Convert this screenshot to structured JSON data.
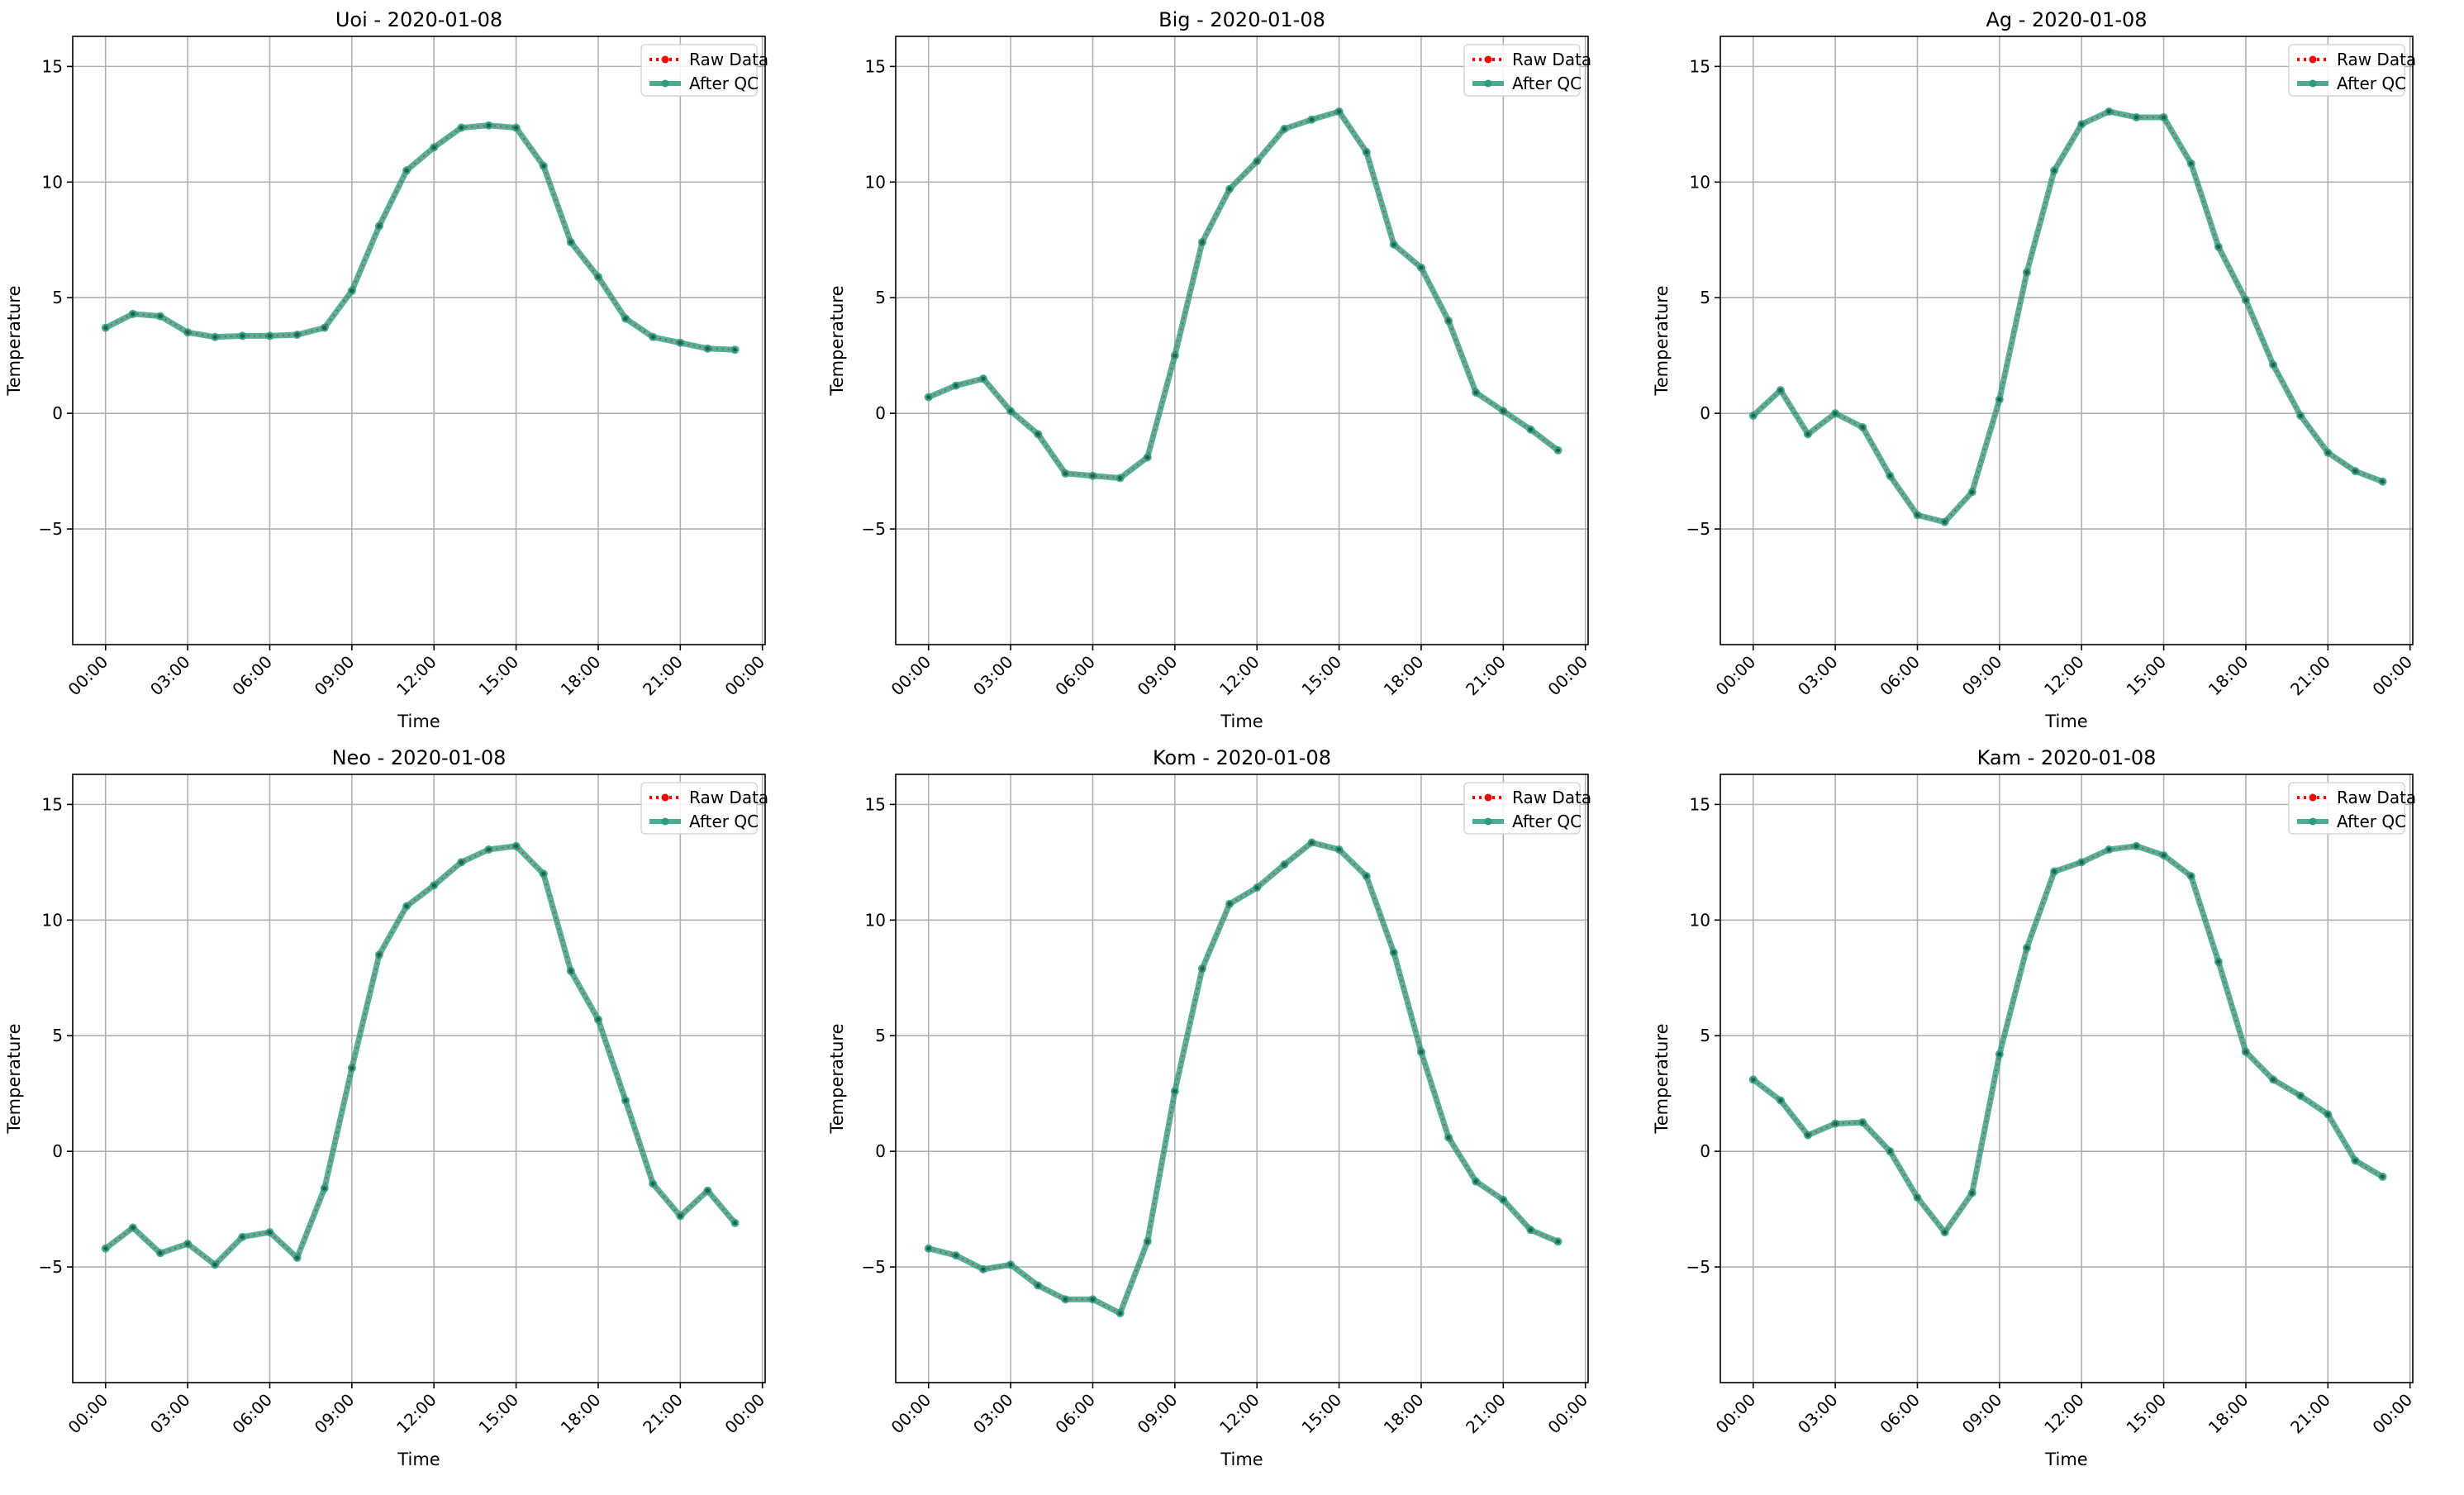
{
  "x_ticks": [
    "00:00",
    "03:00",
    "06:00",
    "09:00",
    "12:00",
    "15:00",
    "18:00",
    "21:00",
    "00:00"
  ],
  "y_ticks": [
    -5,
    0,
    5,
    10,
    15
  ],
  "legend_labels": {
    "raw": "Raw Data",
    "qc": "After QC"
  },
  "colors": {
    "raw": "#ff0000",
    "qc": "#2a9d80",
    "grid": "#b0b0b0"
  },
  "chart_data": [
    {
      "type": "line",
      "title": "Uoi - 2020-01-08",
      "xlabel": "Time",
      "ylabel": "Temperature",
      "xlim_hours": [
        -1.2,
        24.1
      ],
      "ylim": [
        -10,
        16.3
      ],
      "grid": true,
      "legend": "top-right",
      "x_hours": [
        0,
        1,
        2,
        3,
        4,
        5,
        6,
        7,
        8,
        9,
        10,
        11,
        12,
        13,
        14,
        15,
        16,
        17,
        18,
        19,
        20,
        21,
        22,
        23
      ],
      "series": [
        {
          "name": "Raw Data",
          "values": [
            3.7,
            4.3,
            4.2,
            3.5,
            3.3,
            3.35,
            3.35,
            3.4,
            3.7,
            5.3,
            8.1,
            10.5,
            11.5,
            12.35,
            12.45,
            12.35,
            10.7,
            7.4,
            5.9,
            4.1,
            3.3,
            3.05,
            2.8,
            2.75
          ]
        },
        {
          "name": "After QC",
          "values": [
            3.7,
            4.3,
            4.2,
            3.5,
            3.3,
            3.35,
            3.35,
            3.4,
            3.7,
            5.3,
            8.1,
            10.5,
            11.5,
            12.35,
            12.45,
            12.35,
            10.7,
            7.4,
            5.9,
            4.1,
            3.3,
            3.05,
            2.8,
            2.75
          ]
        }
      ]
    },
    {
      "type": "line",
      "title": "Big - 2020-01-08",
      "xlabel": "Time",
      "ylabel": "Temperature",
      "xlim_hours": [
        -1.2,
        24.1
      ],
      "ylim": [
        -10,
        16.3
      ],
      "grid": true,
      "legend": "top-right",
      "x_hours": [
        0,
        1,
        2,
        3,
        4,
        5,
        6,
        7,
        8,
        9,
        10,
        11,
        12,
        13,
        14,
        15,
        16,
        17,
        18,
        19,
        20,
        21,
        22,
        23
      ],
      "series": [
        {
          "name": "Raw Data",
          "values": [
            0.7,
            1.2,
            1.5,
            0.1,
            -0.9,
            -2.6,
            -2.7,
            -2.8,
            -1.9,
            2.5,
            7.4,
            9.7,
            10.9,
            12.3,
            12.7,
            13.05,
            11.3,
            7.3,
            6.3,
            4.0,
            0.9,
            0.1,
            -0.7,
            -1.6
          ]
        },
        {
          "name": "After QC",
          "values": [
            0.7,
            1.2,
            1.5,
            0.1,
            -0.9,
            -2.6,
            -2.7,
            -2.8,
            -1.9,
            2.5,
            7.4,
            9.7,
            10.9,
            12.3,
            12.7,
            13.05,
            11.3,
            7.3,
            6.3,
            4.0,
            0.9,
            0.1,
            -0.7,
            -1.6
          ]
        }
      ]
    },
    {
      "type": "line",
      "title": "Ag - 2020-01-08",
      "xlabel": "Time",
      "ylabel": "Temperature",
      "xlim_hours": [
        -1.2,
        24.1
      ],
      "ylim": [
        -10,
        16.3
      ],
      "grid": true,
      "legend": "top-right",
      "x_hours": [
        0,
        1,
        2,
        3,
        4,
        5,
        6,
        7,
        8,
        9,
        10,
        11,
        12,
        13,
        14,
        15,
        16,
        17,
        18,
        19,
        20,
        21,
        22,
        23
      ],
      "series": [
        {
          "name": "Raw Data",
          "values": [
            -0.1,
            1.0,
            -0.9,
            0.0,
            -0.6,
            -2.7,
            -4.4,
            -4.7,
            -3.4,
            0.6,
            6.1,
            10.5,
            12.5,
            13.05,
            12.8,
            12.8,
            10.8,
            7.2,
            4.9,
            2.1,
            -0.1,
            -1.7,
            -2.5,
            -2.95
          ]
        },
        {
          "name": "After QC",
          "values": [
            -0.1,
            1.0,
            -0.9,
            0.0,
            -0.6,
            -2.7,
            -4.4,
            -4.7,
            -3.4,
            0.6,
            6.1,
            10.5,
            12.5,
            13.05,
            12.8,
            12.8,
            10.8,
            7.2,
            4.9,
            2.1,
            -0.1,
            -1.7,
            -2.5,
            -2.95
          ]
        }
      ]
    },
    {
      "type": "line",
      "title": "Neo - 2020-01-08",
      "xlabel": "Time",
      "ylabel": "Temperature",
      "xlim_hours": [
        -1.2,
        24.1
      ],
      "ylim": [
        -10,
        16.3
      ],
      "grid": true,
      "legend": "top-right",
      "x_hours": [
        0,
        1,
        2,
        3,
        4,
        5,
        6,
        7,
        8,
        9,
        10,
        11,
        12,
        13,
        14,
        15,
        16,
        17,
        18,
        19,
        20,
        21,
        22,
        23
      ],
      "series": [
        {
          "name": "Raw Data",
          "values": [
            -4.2,
            -3.3,
            -4.4,
            -4.0,
            -4.9,
            -3.7,
            -3.5,
            -4.6,
            -1.6,
            3.6,
            8.5,
            10.6,
            11.5,
            12.5,
            13.05,
            13.2,
            12.0,
            7.8,
            5.7,
            2.2,
            -1.4,
            -2.8,
            -1.7,
            -3.1
          ]
        },
        {
          "name": "After QC",
          "values": [
            -4.2,
            -3.3,
            -4.4,
            -4.0,
            -4.9,
            -3.7,
            -3.5,
            -4.6,
            -1.6,
            3.6,
            8.5,
            10.6,
            11.5,
            12.5,
            13.05,
            13.2,
            12.0,
            7.8,
            5.7,
            2.2,
            -1.4,
            -2.8,
            -1.7,
            -3.1
          ]
        }
      ]
    },
    {
      "type": "line",
      "title": "Kom - 2020-01-08",
      "xlabel": "Time",
      "ylabel": "Temperature",
      "xlim_hours": [
        -1.2,
        24.1
      ],
      "ylim": [
        -10,
        16.3
      ],
      "grid": true,
      "legend": "top-right",
      "x_hours": [
        0,
        1,
        2,
        3,
        4,
        5,
        6,
        7,
        8,
        9,
        10,
        11,
        12,
        13,
        14,
        15,
        16,
        17,
        18,
        19,
        20,
        21,
        22,
        23
      ],
      "series": [
        {
          "name": "Raw Data",
          "values": [
            -4.2,
            -4.5,
            -5.1,
            -4.9,
            -5.8,
            -6.4,
            -6.4,
            -7.0,
            -3.9,
            2.6,
            7.9,
            10.7,
            11.4,
            12.4,
            13.35,
            13.05,
            11.9,
            8.6,
            4.3,
            0.6,
            -1.3,
            -2.1,
            -3.4,
            -3.9
          ]
        },
        {
          "name": "After QC",
          "values": [
            -4.2,
            -4.5,
            -5.1,
            -4.9,
            -5.8,
            -6.4,
            -6.4,
            -7.0,
            -3.9,
            2.6,
            7.9,
            10.7,
            11.4,
            12.4,
            13.35,
            13.05,
            11.9,
            8.6,
            4.3,
            0.6,
            -1.3,
            -2.1,
            -3.4,
            -3.9
          ]
        }
      ]
    },
    {
      "type": "line",
      "title": "Kam - 2020-01-08",
      "xlabel": "Time",
      "ylabel": "Temperature",
      "xlim_hours": [
        -1.2,
        24.1
      ],
      "ylim": [
        -10,
        16.3
      ],
      "grid": true,
      "legend": "top-right",
      "x_hours": [
        0,
        1,
        2,
        3,
        4,
        5,
        6,
        7,
        8,
        9,
        10,
        11,
        12,
        13,
        14,
        15,
        16,
        17,
        18,
        19,
        20,
        21,
        22,
        23
      ],
      "series": [
        {
          "name": "Raw Data",
          "values": [
            3.1,
            2.2,
            0.7,
            1.2,
            1.25,
            0.0,
            -2.0,
            -3.5,
            -1.8,
            4.2,
            8.8,
            12.1,
            12.5,
            13.05,
            13.2,
            12.8,
            11.9,
            8.2,
            4.3,
            3.1,
            2.4,
            1.6,
            -0.4,
            -1.1
          ]
        },
        {
          "name": "After QC",
          "values": [
            3.1,
            2.2,
            0.7,
            1.2,
            1.25,
            0.0,
            -2.0,
            -3.5,
            -1.8,
            4.2,
            8.8,
            12.1,
            12.5,
            13.05,
            13.2,
            12.8,
            11.9,
            8.2,
            4.3,
            3.1,
            2.4,
            1.6,
            -0.4,
            -1.1
          ]
        }
      ]
    }
  ]
}
